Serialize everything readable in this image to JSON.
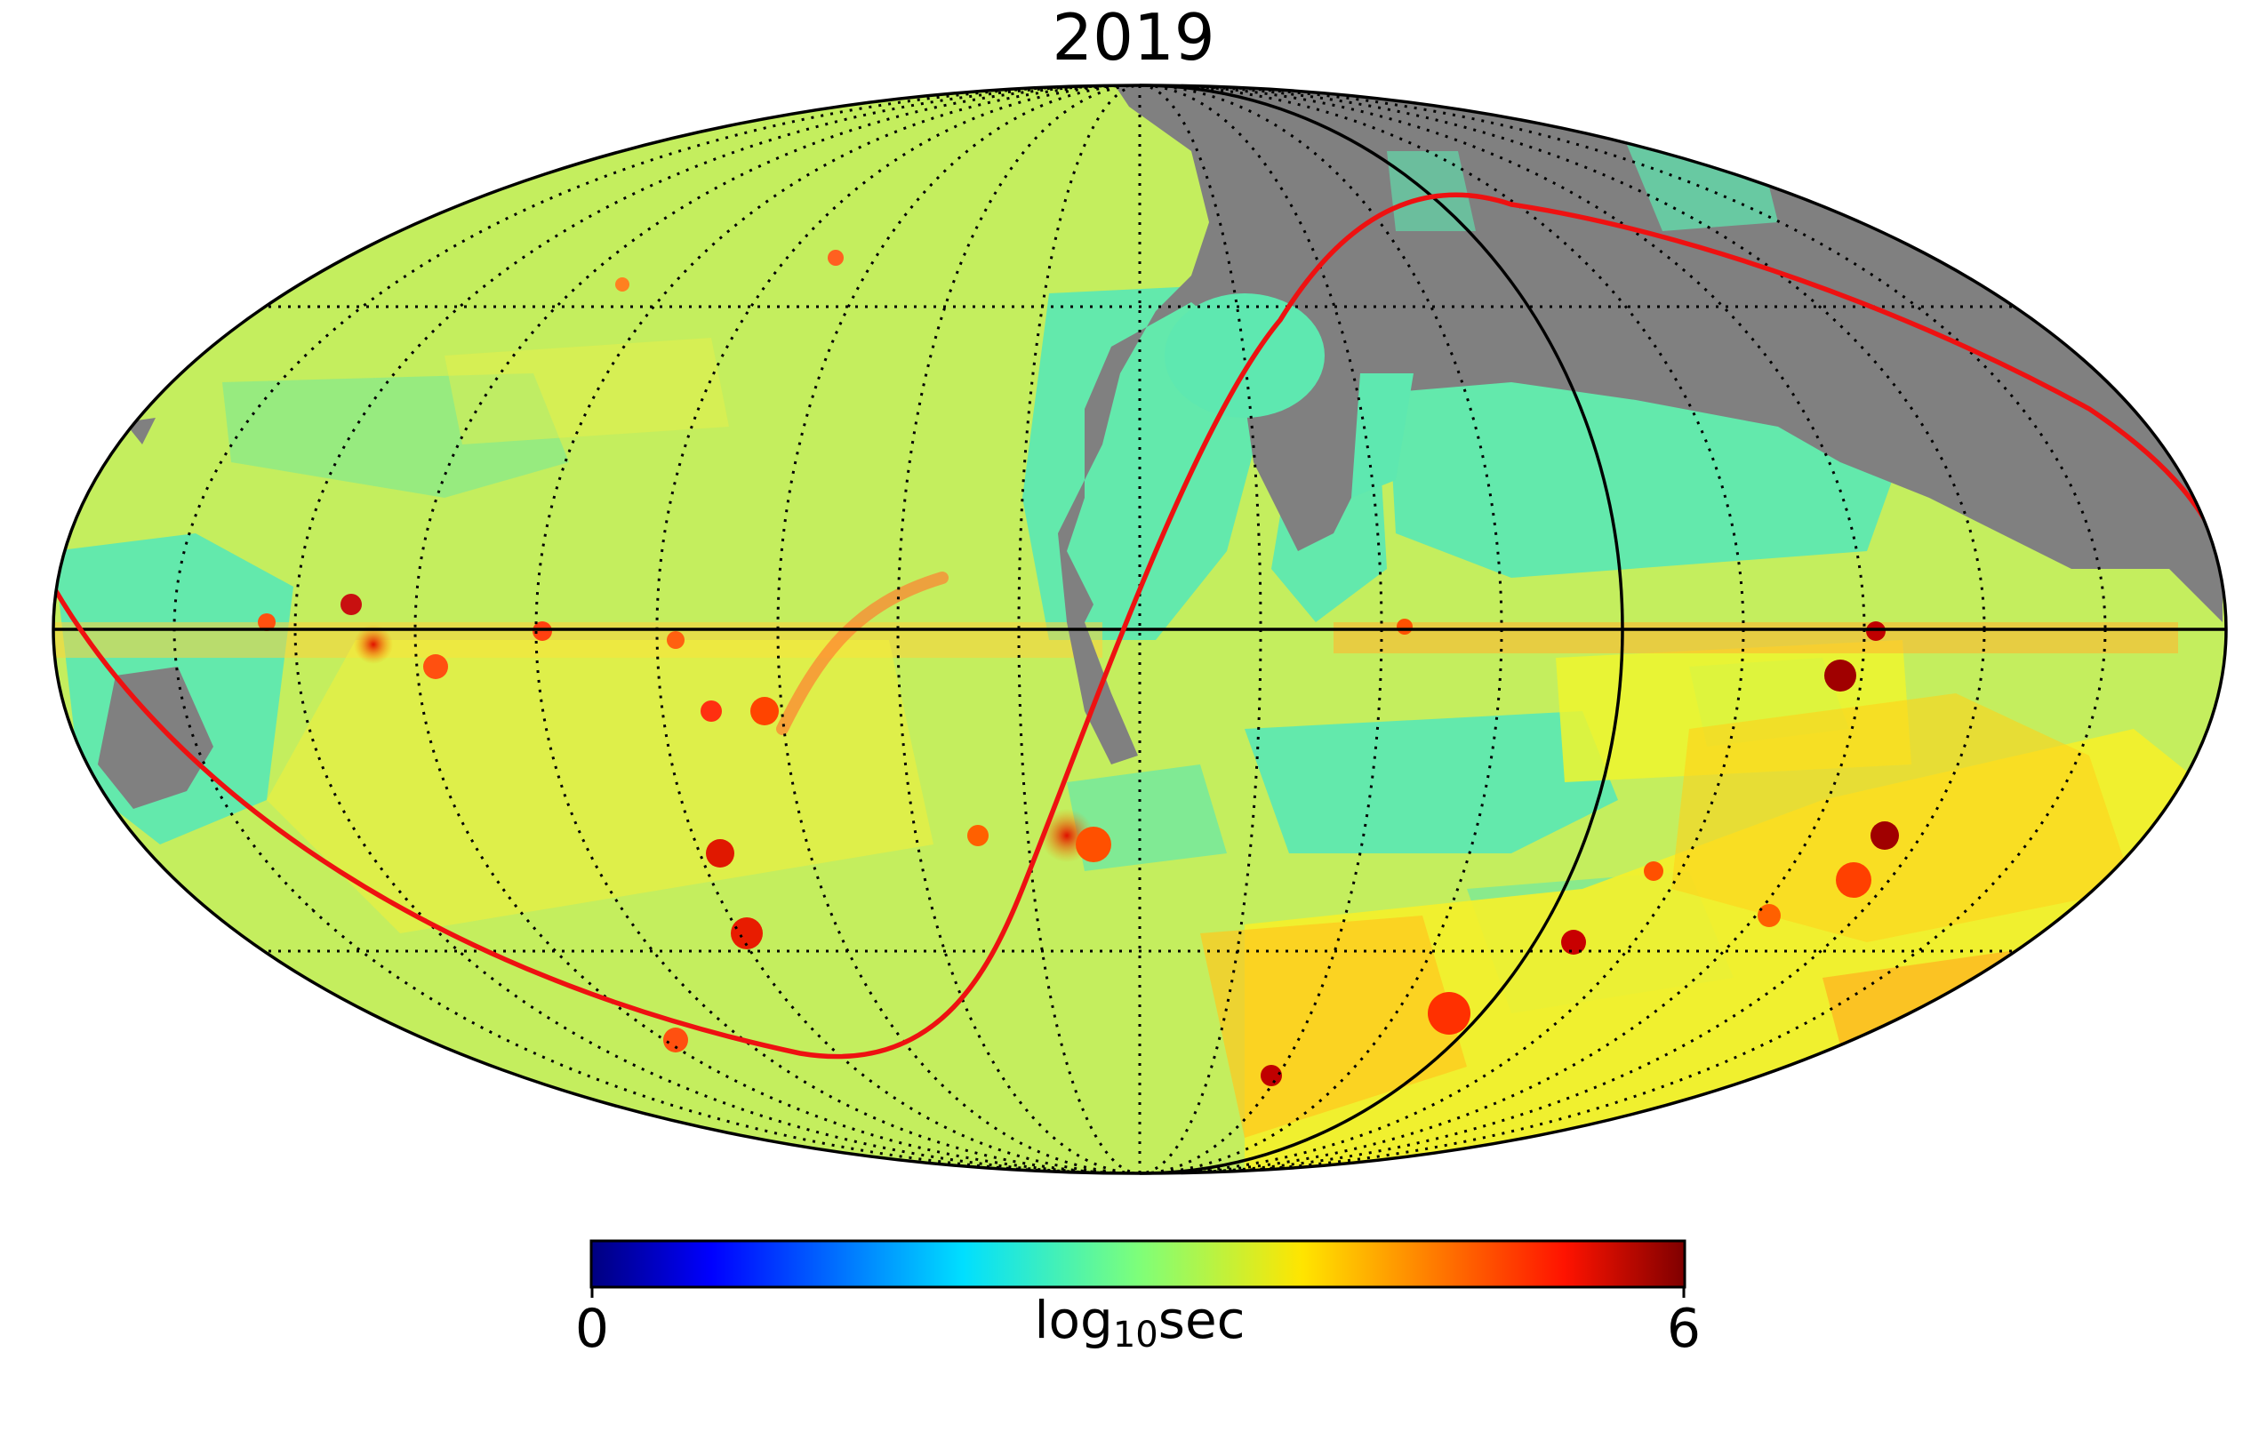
{
  "title": "2019",
  "colorbar": {
    "min_label": "0",
    "max_label": "6",
    "label_base": "log",
    "label_sub": "10",
    "label_unit": "sec",
    "colormap": "jet",
    "min_value": 0,
    "max_value": 6
  },
  "map": {
    "projection": "mollweide",
    "unseen_color": "#808080",
    "background_color": "#c2f060",
    "ecliptic_color": "#ee1111",
    "graticule_color": "#000000",
    "graticule_style": "dotted"
  }
}
